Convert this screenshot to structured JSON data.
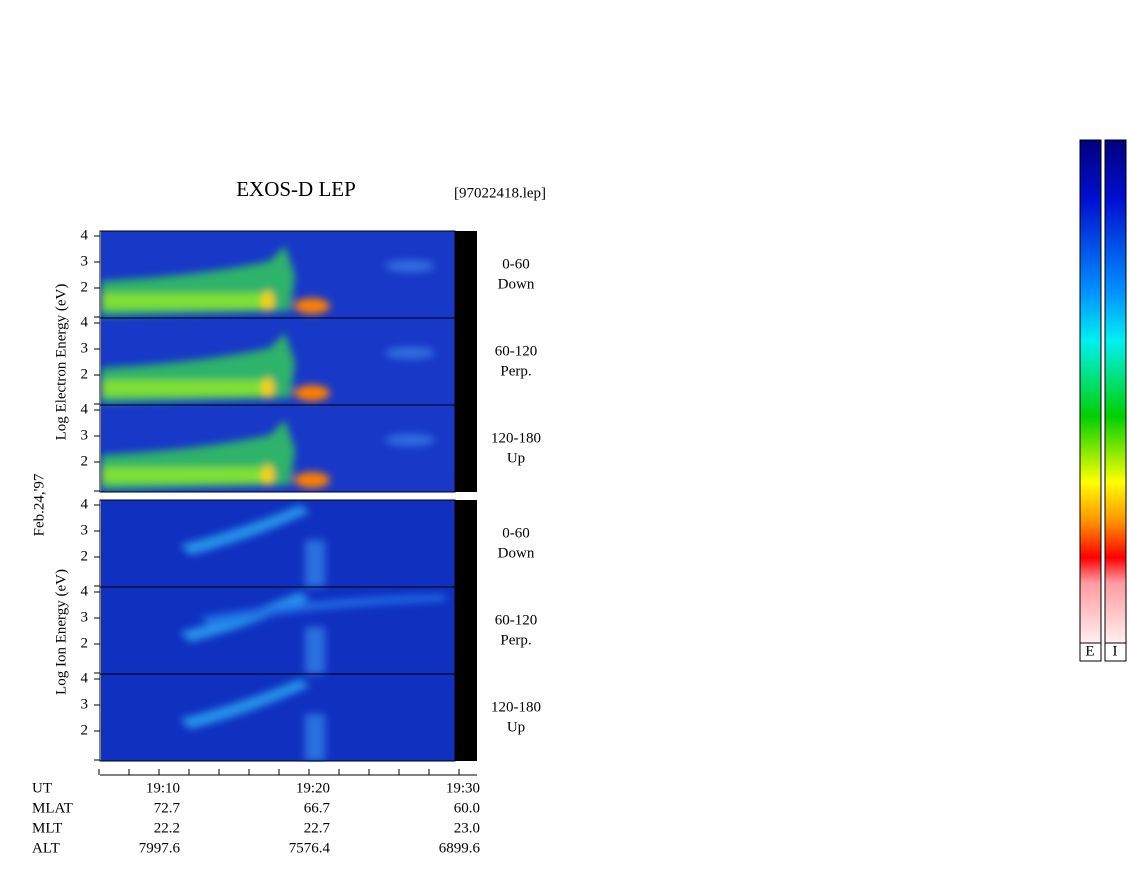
{
  "header": {
    "title": "EXOS-D LEP",
    "file": "[97022418.lep]"
  },
  "date": "Feb.24,'97",
  "y_tick_labels": [
    "4",
    "3",
    "2"
  ],
  "electron": {
    "axis_label": "Log  Electron  Energy (eV)",
    "panels": [
      [
        "0-60",
        "Down"
      ],
      [
        "60-120",
        "Perp."
      ],
      [
        "120-180",
        "Up"
      ]
    ]
  },
  "ion": {
    "axis_label": "Log  Ion  Energy (eV)",
    "panels": [
      [
        "0-60",
        "Down"
      ],
      [
        "60-120",
        "Perp."
      ],
      [
        "120-180",
        "Up"
      ]
    ]
  },
  "table": {
    "rows": [
      {
        "label": "UT",
        "values": [
          "19:10",
          "19:20",
          "19:30"
        ]
      },
      {
        "label": "MLAT",
        "values": [
          "72.7",
          "66.7",
          "60.0"
        ]
      },
      {
        "label": "MLT",
        "values": [
          "22.2",
          "22.7",
          "23.0"
        ]
      },
      {
        "label": "ALT",
        "values": [
          "7997.6",
          "7576.4",
          "6899.6"
        ]
      }
    ]
  },
  "colorbar": {
    "labels": [
      "E",
      "I"
    ]
  }
}
